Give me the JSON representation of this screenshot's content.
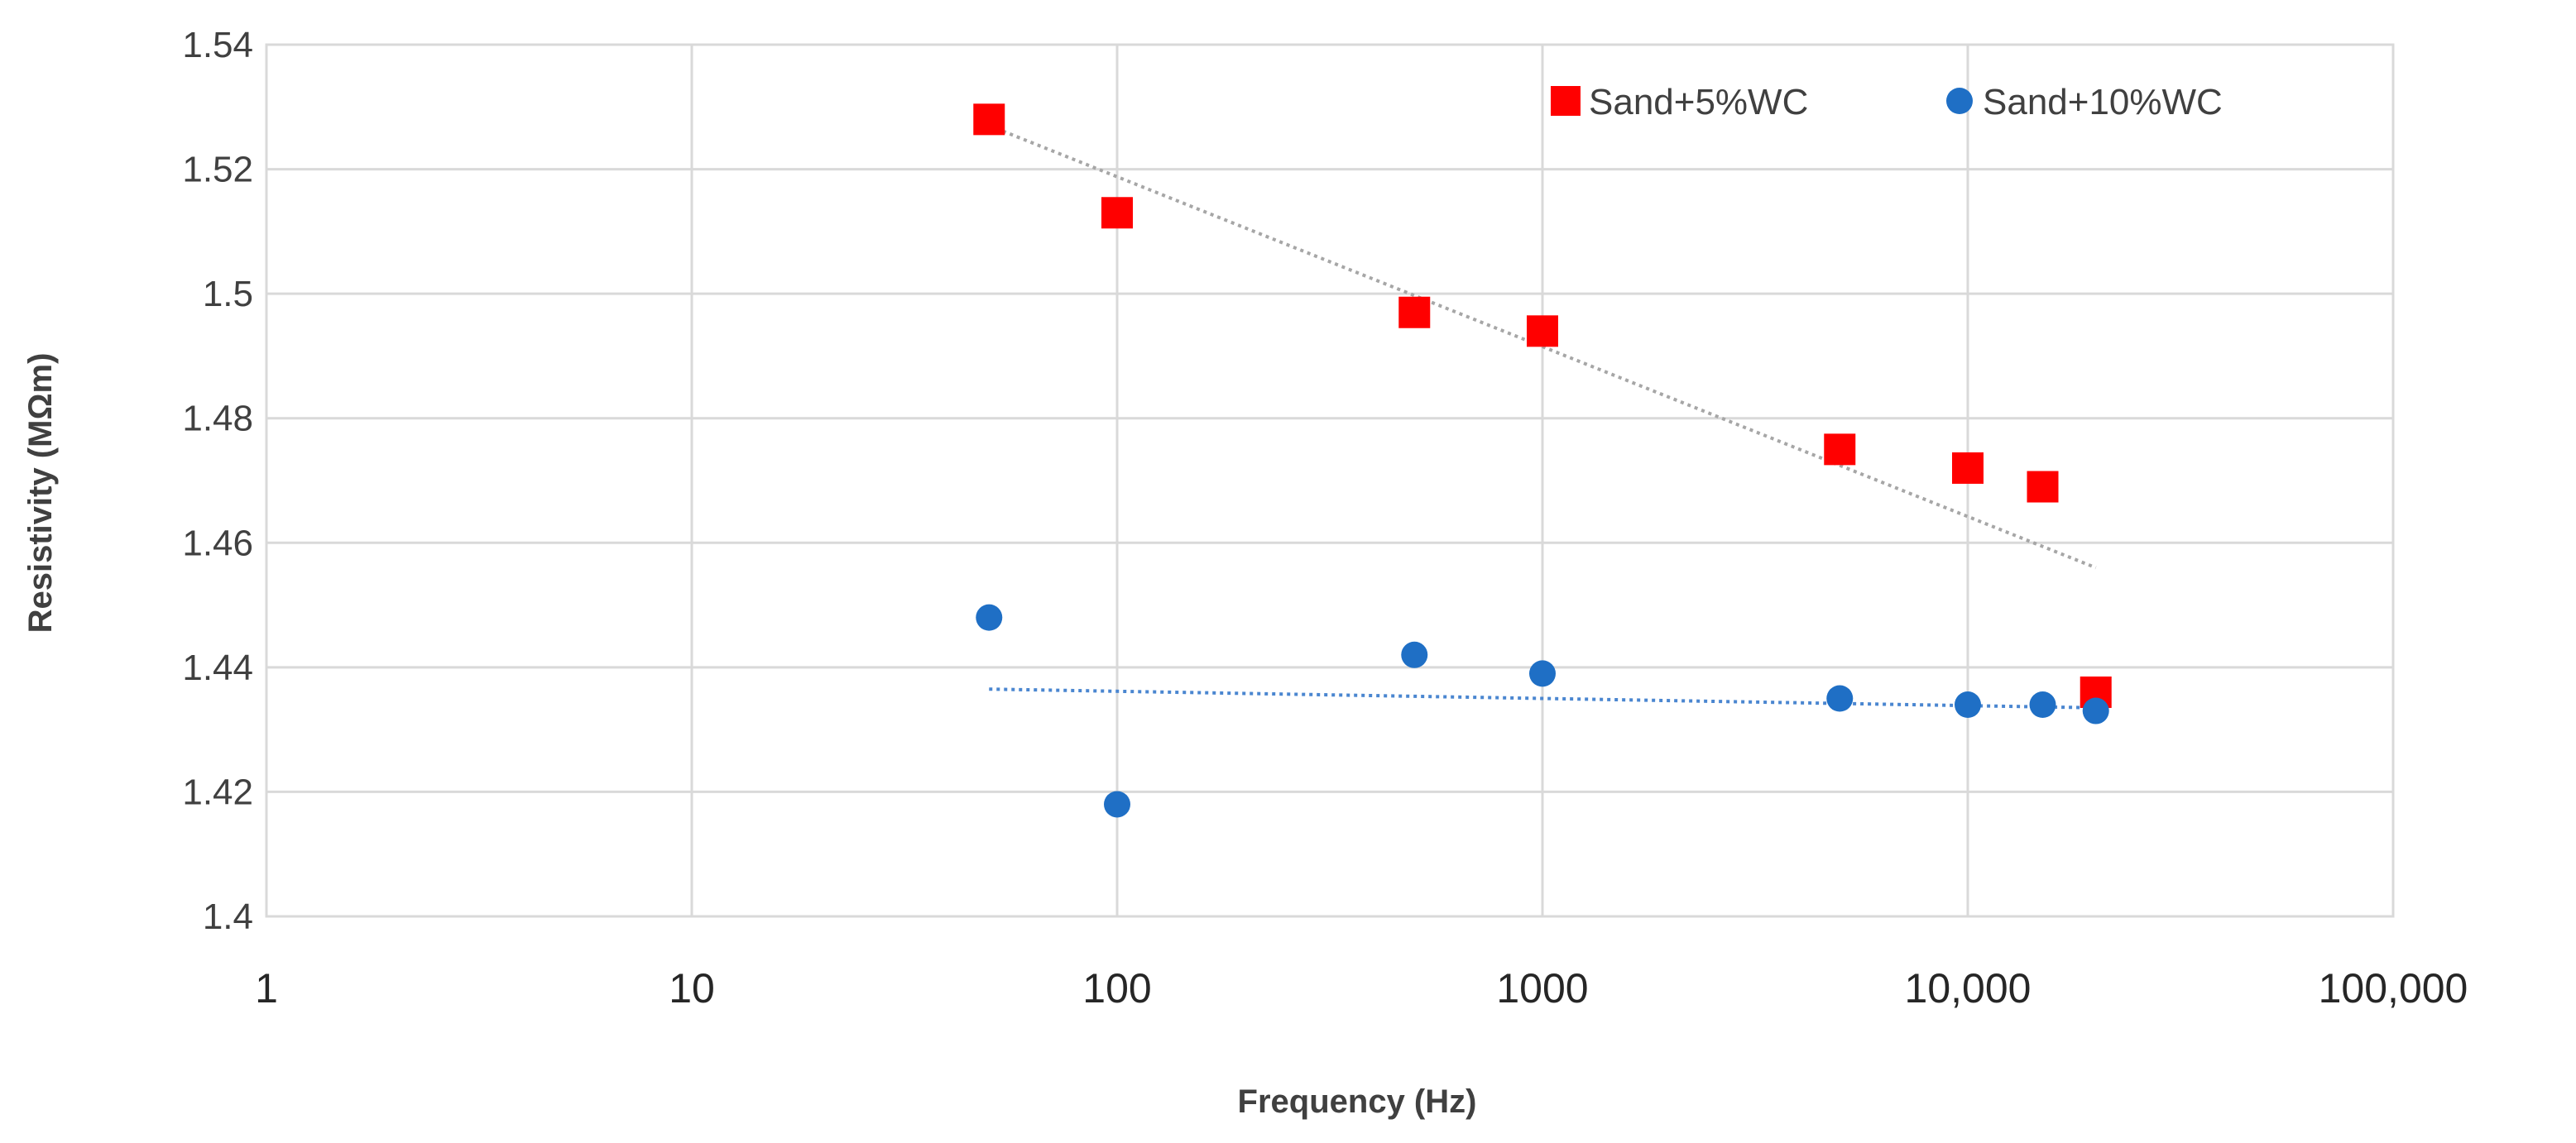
{
  "chart_data": {
    "type": "scatter",
    "title": "",
    "xlabel": "Frequency (Hz)",
    "ylabel": "Resistivity (MΩm)",
    "x_scale": "log",
    "xlim": [
      1,
      100000
    ],
    "ylim": [
      1.4,
      1.54
    ],
    "grid": true,
    "legend_position": "top-right",
    "x_ticks": [
      {
        "value": 1,
        "label": "1"
      },
      {
        "value": 10,
        "label": "10"
      },
      {
        "value": 100,
        "label": "100"
      },
      {
        "value": 1000,
        "label": "1000"
      },
      {
        "value": 10000,
        "label": "10,000"
      },
      {
        "value": 100000,
        "label": "100,000"
      }
    ],
    "y_ticks": [
      {
        "value": 1.4,
        "label": "1.4"
      },
      {
        "value": 1.42,
        "label": "1.42"
      },
      {
        "value": 1.44,
        "label": "1.44"
      },
      {
        "value": 1.46,
        "label": "1.46"
      },
      {
        "value": 1.48,
        "label": "1.48"
      },
      {
        "value": 1.5,
        "label": "1.5"
      },
      {
        "value": 1.52,
        "label": "1.52"
      },
      {
        "value": 1.54,
        "label": "1.54"
      }
    ],
    "series": [
      {
        "name": "Sand+5%WC",
        "marker": "square",
        "color": "#ff0000",
        "x": [
          50,
          100,
          500,
          1000,
          5000,
          10000,
          15000,
          20000
        ],
        "y": [
          1.528,
          1.513,
          1.497,
          1.494,
          1.475,
          1.472,
          1.469,
          1.436
        ],
        "trendline": {
          "style": "dotted",
          "color": "#a6a6a6",
          "from": [
            50,
            1.527
          ],
          "to": [
            20000,
            1.456
          ]
        }
      },
      {
        "name": "Sand+10%WC",
        "marker": "circle",
        "color": "#1f6fc5",
        "x": [
          50,
          100,
          500,
          1000,
          5000,
          10000,
          15000,
          20000
        ],
        "y": [
          1.448,
          1.418,
          1.442,
          1.439,
          1.435,
          1.434,
          1.434,
          1.433
        ],
        "trendline": {
          "style": "dotted",
          "color": "#4a86d0",
          "from": [
            50,
            1.4365
          ],
          "to": [
            20000,
            1.4335
          ]
        }
      }
    ]
  }
}
